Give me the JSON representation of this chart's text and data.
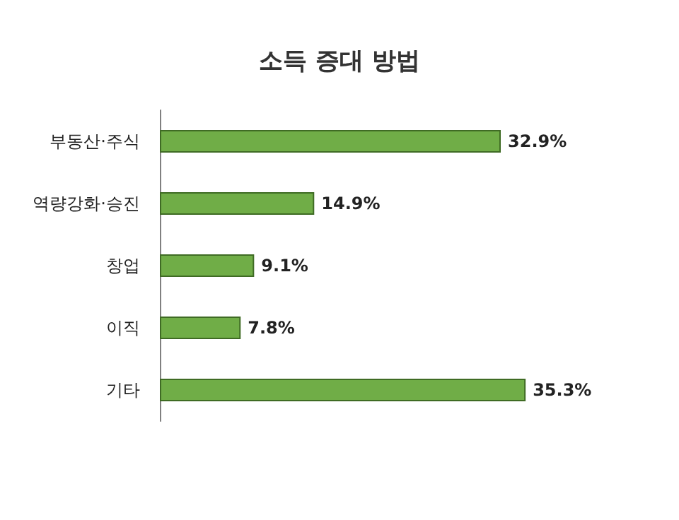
{
  "chart_data": {
    "type": "bar",
    "title": "소득 증대 방법",
    "orientation": "horizontal",
    "categories": [
      "부동산·주식",
      "역량강화·승진",
      "창업",
      "이직",
      "기타"
    ],
    "values": [
      32.9,
      14.9,
      9.1,
      7.8,
      35.3
    ],
    "value_labels": [
      "32.9%",
      "14.9%",
      "9.1%",
      "7.8%",
      "35.3%"
    ],
    "color": "#70ad47"
  }
}
